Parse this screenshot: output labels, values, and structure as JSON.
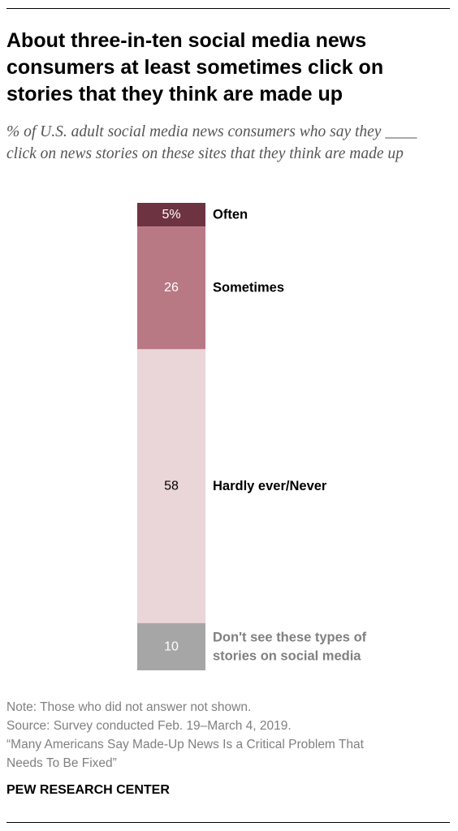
{
  "header": {
    "title": "About three-in-ten social media news consumers at least sometimes click on stories that they think are made up",
    "subtitle": "% of U.S. adult social media news consumers who say they ____ click on news stories on these sites that they think are made up"
  },
  "chart_data": {
    "type": "bar",
    "orientation": "vertical-stacked",
    "unit": "%",
    "grid": false,
    "legend": "labels beside segments",
    "categories": [
      "Often",
      "Sometimes",
      "Hardly ever/Never",
      "Don't see these types of stories on social media"
    ],
    "segments": [
      {
        "label": "Often",
        "label_lines": [
          "Often"
        ],
        "value": 5,
        "value_label": "5%",
        "color": "#6E3340",
        "value_text_color": "#ffffff",
        "label_color": "#000000"
      },
      {
        "label": "Sometimes",
        "label_lines": [
          "Sometimes"
        ],
        "value": 26,
        "value_label": "26",
        "color": "#B87984",
        "value_text_color": "#ffffff",
        "label_color": "#000000"
      },
      {
        "label": "Hardly ever/Never",
        "label_lines": [
          "Hardly ever/Never"
        ],
        "value": 58,
        "value_label": "58",
        "color": "#EAD5D9",
        "value_text_color": "#000000",
        "label_color": "#000000"
      },
      {
        "label": "Don't see these types of stories on social media",
        "label_lines": [
          "Don't see these types of",
          "stories on social media"
        ],
        "value": 10,
        "value_label": "10",
        "color": "#A6A6A6",
        "value_text_color": "#ffffff",
        "label_color": "#808080"
      }
    ]
  },
  "footer": {
    "note": "Note: Those who did not answer not shown.",
    "source": "Source: Survey conducted Feb. 19–March 4, 2019.",
    "report_line1": "“Many Americans Say Made-Up News Is a Critical Problem That",
    "report_line2": "Needs To Be Fixed”",
    "credit": "PEW RESEARCH CENTER"
  }
}
